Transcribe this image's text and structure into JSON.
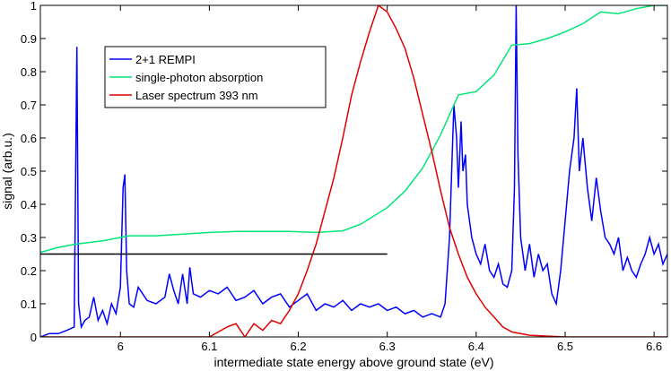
{
  "chart_data": {
    "type": "line",
    "xlabel": "intermediate state energy above ground state (eV)",
    "ylabel": "signal (arb.u.)",
    "xlim": [
      5.91,
      6.615
    ],
    "ylim": [
      0,
      1
    ],
    "xticks": [
      6,
      6.1,
      6.2,
      6.3,
      6.4,
      6.5,
      6.6
    ],
    "xtick_labels": [
      "6",
      "6.1",
      "6.2",
      "6.3",
      "6.4",
      "6.5",
      "6.6"
    ],
    "yticks": [
      0,
      0.1,
      0.2,
      0.3,
      0.4,
      0.5,
      0.6,
      0.7,
      0.8,
      0.9,
      1
    ],
    "ytick_labels": [
      "0",
      "0.1",
      "0.2",
      "0.3",
      "0.4",
      "0.5",
      "0.6",
      "0.7",
      "0.8",
      "0.9",
      "1"
    ],
    "grid": false,
    "legend_position": "top-left",
    "series": [
      {
        "name": "2+1 REMPI",
        "color": "#0000ff",
        "x": [
          5.91,
          5.92,
          5.93,
          5.94,
          5.948,
          5.951,
          5.953,
          5.956,
          5.96,
          5.965,
          5.97,
          5.975,
          5.98,
          5.985,
          5.99,
          5.995,
          6.0,
          6.003,
          6.005,
          6.007,
          6.01,
          6.015,
          6.02,
          6.03,
          6.04,
          6.05,
          6.055,
          6.06,
          6.065,
          6.07,
          6.075,
          6.078,
          6.082,
          6.09,
          6.1,
          6.11,
          6.12,
          6.13,
          6.14,
          6.15,
          6.16,
          6.17,
          6.18,
          6.19,
          6.2,
          6.21,
          6.22,
          6.23,
          6.24,
          6.25,
          6.26,
          6.27,
          6.28,
          6.29,
          6.3,
          6.31,
          6.32,
          6.33,
          6.34,
          6.35,
          6.36,
          6.365,
          6.37,
          6.373,
          6.375,
          6.378,
          6.38,
          6.383,
          6.385,
          6.388,
          6.39,
          6.395,
          6.4,
          6.405,
          6.41,
          6.415,
          6.42,
          6.425,
          6.43,
          6.435,
          6.44,
          6.443,
          6.445,
          6.447,
          6.45,
          6.455,
          6.46,
          6.465,
          6.47,
          6.475,
          6.48,
          6.485,
          6.49,
          6.495,
          6.5,
          6.505,
          6.51,
          6.513,
          6.516,
          6.52,
          6.525,
          6.53,
          6.535,
          6.54,
          6.545,
          6.55,
          6.555,
          6.56,
          6.565,
          6.57,
          6.575,
          6.58,
          6.585,
          6.59,
          6.595,
          6.6,
          6.605,
          6.61,
          6.615
        ],
        "y": [
          0.0,
          0.01,
          0.01,
          0.02,
          0.03,
          0.875,
          0.1,
          0.03,
          0.05,
          0.06,
          0.12,
          0.05,
          0.08,
          0.04,
          0.1,
          0.07,
          0.15,
          0.45,
          0.49,
          0.2,
          0.1,
          0.09,
          0.15,
          0.11,
          0.1,
          0.12,
          0.19,
          0.14,
          0.1,
          0.19,
          0.1,
          0.21,
          0.13,
          0.12,
          0.14,
          0.13,
          0.15,
          0.11,
          0.12,
          0.14,
          0.1,
          0.12,
          0.13,
          0.09,
          0.11,
          0.13,
          0.08,
          0.1,
          0.09,
          0.11,
          0.08,
          0.1,
          0.09,
          0.1,
          0.08,
          0.09,
          0.07,
          0.08,
          0.06,
          0.07,
          0.06,
          0.1,
          0.3,
          0.55,
          0.7,
          0.6,
          0.45,
          0.65,
          0.5,
          0.55,
          0.4,
          0.3,
          0.25,
          0.22,
          0.28,
          0.2,
          0.18,
          0.22,
          0.16,
          0.15,
          0.2,
          0.45,
          1.0,
          0.55,
          0.3,
          0.2,
          0.28,
          0.18,
          0.25,
          0.2,
          0.22,
          0.13,
          0.1,
          0.2,
          0.35,
          0.5,
          0.6,
          0.75,
          0.5,
          0.6,
          0.45,
          0.35,
          0.48,
          0.38,
          0.3,
          0.28,
          0.25,
          0.3,
          0.2,
          0.24,
          0.2,
          0.18,
          0.22,
          0.25,
          0.3,
          0.25,
          0.28,
          0.22,
          0.25
        ]
      },
      {
        "name": "single-photon absorption",
        "color": "#00e676",
        "x": [
          5.91,
          5.93,
          5.95,
          5.98,
          6.01,
          6.04,
          6.07,
          6.1,
          6.13,
          6.16,
          6.19,
          6.22,
          6.25,
          6.27,
          6.3,
          6.32,
          6.34,
          6.36,
          6.38,
          6.4,
          6.42,
          6.44,
          6.46,
          6.48,
          6.5,
          6.52,
          6.54,
          6.56,
          6.58,
          6.6,
          6.615
        ],
        "y": [
          0.255,
          0.27,
          0.28,
          0.29,
          0.305,
          0.305,
          0.31,
          0.315,
          0.318,
          0.318,
          0.318,
          0.315,
          0.32,
          0.34,
          0.39,
          0.44,
          0.51,
          0.61,
          0.73,
          0.74,
          0.79,
          0.88,
          0.885,
          0.9,
          0.92,
          0.945,
          0.98,
          0.975,
          0.99,
          1.0,
          1.0
        ]
      },
      {
        "name": "Laser spectrum 393 nm",
        "color": "#e00000",
        "x": [
          5.91,
          6.0,
          6.1,
          6.12,
          6.13,
          6.14,
          6.15,
          6.16,
          6.17,
          6.18,
          6.19,
          6.2,
          6.21,
          6.22,
          6.23,
          6.24,
          6.25,
          6.26,
          6.27,
          6.28,
          6.29,
          6.3,
          6.31,
          6.32,
          6.33,
          6.34,
          6.35,
          6.36,
          6.37,
          6.38,
          6.39,
          6.4,
          6.41,
          6.42,
          6.43,
          6.44,
          6.46,
          6.5,
          6.615
        ],
        "y": [
          0.0,
          0.0,
          0.0,
          0.03,
          0.04,
          0.0,
          0.04,
          0.02,
          0.05,
          0.04,
          0.08,
          0.13,
          0.2,
          0.28,
          0.38,
          0.48,
          0.6,
          0.73,
          0.83,
          0.92,
          1.0,
          0.98,
          0.93,
          0.87,
          0.78,
          0.67,
          0.56,
          0.44,
          0.33,
          0.25,
          0.18,
          0.13,
          0.09,
          0.06,
          0.03,
          0.015,
          0.005,
          0.0,
          0.0
        ]
      },
      {
        "name": "",
        "color": "#000000",
        "x": [
          5.91,
          6.3
        ],
        "y": [
          0.25,
          0.25
        ]
      }
    ]
  }
}
